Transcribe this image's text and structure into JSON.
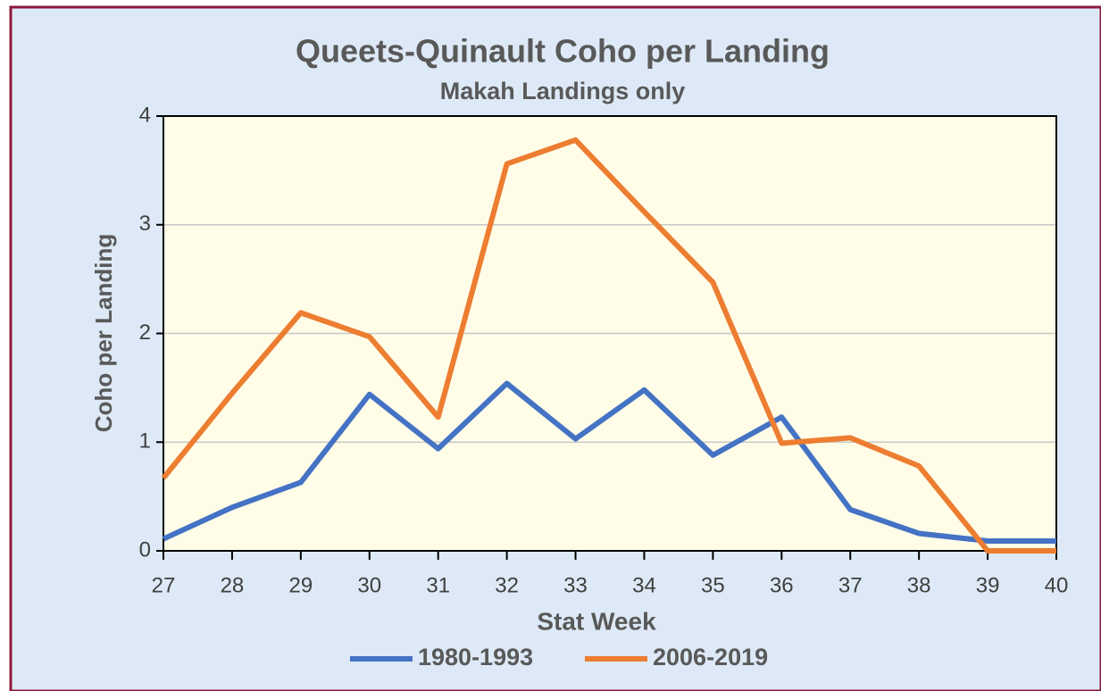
{
  "chart_data": {
    "type": "line",
    "title": "Queets-Quinault Coho per Landing",
    "subtitle": "Makah Landings only",
    "x_label": "Stat Week",
    "y_label": "Coho per Landing",
    "x": [
      27,
      28,
      29,
      30,
      31,
      32,
      33,
      34,
      35,
      36,
      37,
      38,
      39,
      40
    ],
    "series": [
      {
        "name": "1980-1993",
        "color": "#4472c4",
        "values": [
          0.11,
          0.4,
          0.63,
          1.44,
          0.94,
          1.54,
          1.03,
          1.48,
          0.88,
          1.23,
          0.38,
          0.16,
          0.09,
          0.09
        ]
      },
      {
        "name": "2006-2019",
        "color": "#ed7d31",
        "values": [
          0.67,
          1.45,
          2.19,
          1.97,
          1.23,
          3.56,
          3.78,
          3.12,
          2.47,
          0.99,
          1.04,
          0.78,
          0,
          0
        ]
      }
    ],
    "xlim": [
      27,
      40
    ],
    "xticks": [
      27,
      28,
      29,
      30,
      31,
      32,
      33,
      34,
      35,
      36,
      37,
      38,
      39,
      40
    ],
    "ylim": [
      0,
      4
    ],
    "yticks": [
      0,
      1,
      2,
      3,
      4
    ],
    "grid": true,
    "legend": "bottom"
  }
}
